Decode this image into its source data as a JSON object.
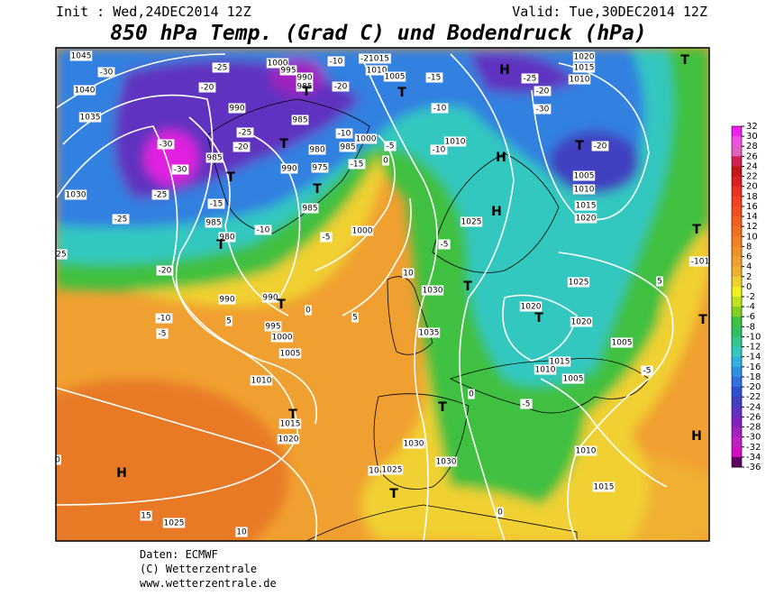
{
  "header": {
    "init": "Init : Wed,24DEC2014 12Z",
    "valid": "Valid: Tue,30DEC2014 12Z",
    "title": "850 hPa Temp. (Grad C) und Bodendruck (hPa)"
  },
  "colorbar": {
    "ticks": [
      32,
      30,
      28,
      26,
      24,
      22,
      20,
      18,
      16,
      14,
      12,
      10,
      8,
      6,
      4,
      2,
      0,
      -2,
      -4,
      -6,
      -8,
      -10,
      -12,
      -14,
      -16,
      -18,
      -20,
      -22,
      -24,
      -26,
      -28,
      -30,
      -32,
      -34,
      -36
    ],
    "colors": [
      "#f020f0",
      "#f050e0",
      "#e060c0",
      "#d02050",
      "#c01818",
      "#d82020",
      "#e83020",
      "#f04020",
      "#f05020",
      "#f06020",
      "#f07020",
      "#f08020",
      "#f09028",
      "#f0a030",
      "#f0b030",
      "#f0d030",
      "#f0f020",
      "#c0e020",
      "#80d020",
      "#40c040",
      "#30c060",
      "#30c890",
      "#30c8c0",
      "#30b0e0",
      "#3090e0",
      "#3070e0",
      "#3050d0",
      "#4040c0",
      "#6030c0",
      "#8020c0",
      "#a020c0",
      "#c020c0",
      "#d010c0",
      "#600060"
    ]
  },
  "map_labels": [
    "1045",
    "-30",
    "1040",
    "1035",
    "1030",
    "-25",
    "25",
    "-30",
    "-30",
    "-25",
    "-20",
    "-10",
    "-5",
    "H",
    "15",
    "1025",
    "10",
    "1020",
    "1015",
    "T",
    "1010",
    "1005",
    "1000",
    "995",
    "990",
    "T",
    "990",
    "985",
    "980",
    "T",
    "-10",
    "-15",
    "T",
    "985",
    "-20",
    "990",
    "-25",
    "-25",
    "-20",
    "1000",
    "995",
    "990",
    "985",
    "T",
    "-10",
    "-20",
    "-21015",
    "1010",
    "1005",
    "-15",
    "T",
    "-10",
    "1010",
    "-10",
    "985",
    "T",
    "980",
    "990",
    "975",
    "T",
    "985",
    "-10",
    "985",
    "1000",
    "-5",
    "-15",
    "0",
    "1000",
    "-5",
    "H",
    "-25",
    "1020",
    "1015",
    "1010",
    "-20",
    "-30",
    "T",
    "-20",
    "1005",
    "1010",
    "1015",
    "1020",
    "T",
    "H",
    "1025",
    "H",
    "-5",
    "1030",
    "T",
    "1025",
    "1020",
    "T",
    "1020",
    "1005",
    "1015",
    "1010",
    "1005",
    "-5",
    "T",
    "0",
    "1010",
    "1015",
    "1030",
    "1030",
    "1025",
    "10",
    "T",
    "0",
    "H",
    "T",
    "-5",
    "5",
    "-101",
    "T",
    "1035",
    "0",
    "5",
    "0",
    "10",
    "5"
  ],
  "footer": [
    "Daten: ECMWF",
    "(C) Wetterzentrale",
    "www.wetterzentrale.de"
  ]
}
